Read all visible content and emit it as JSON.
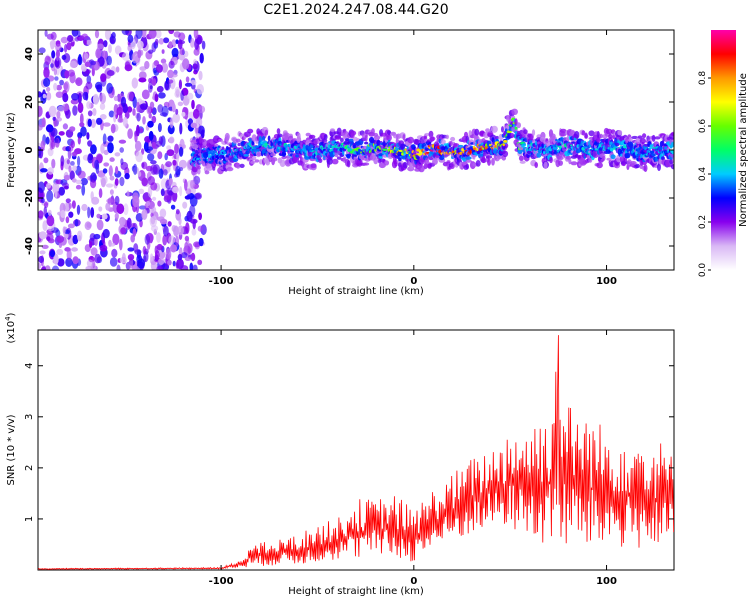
{
  "title": "C2E1.2024.247.08.44.G20",
  "chart_data": [
    {
      "type": "heatmap",
      "xlabel": "Height of straight line (km)",
      "ylabel": "Frequency (Hz)",
      "xlim": [
        -195,
        135
      ],
      "ylim": [
        -50,
        50
      ],
      "xticks": [
        -100,
        0,
        100
      ],
      "yticks": [
        -40,
        -20,
        0,
        20,
        40
      ],
      "colorbar": {
        "label": "Normalized spectral amplitude",
        "range": [
          0.0,
          1.0
        ],
        "ticks": [
          0.0,
          0.2,
          0.4,
          0.6,
          0.8
        ],
        "tick_labels": [
          "0.0",
          "0.2",
          "0.4",
          "0.6",
          "0.8"
        ],
        "colormap": [
          "#ffffff",
          "#d9b8f5",
          "#8800ee",
          "#0000ff",
          "#00ccff",
          "#00ff66",
          "#66ff00",
          "#ffff00",
          "#ff9900",
          "#ff0000",
          "#ff00aa"
        ]
      },
      "signal_ridge": {
        "x": [
          -115,
          -100,
          -90,
          -80,
          -70,
          -60,
          -50,
          -40,
          -30,
          -20,
          -10,
          0,
          5,
          10,
          20,
          30,
          40,
          45,
          52,
          55,
          60,
          70,
          80,
          90,
          100,
          110,
          120,
          130,
          135
        ],
        "freq": [
          -3,
          -2,
          0,
          2,
          1,
          0,
          -1,
          2,
          0,
          1,
          0,
          -2,
          -1,
          1,
          -1,
          0,
          2,
          1,
          12,
          2,
          1,
          0,
          2,
          0,
          1,
          0,
          -1,
          0,
          0
        ],
        "amplitude": [
          0.35,
          0.35,
          0.4,
          0.45,
          0.45,
          0.4,
          0.4,
          0.5,
          0.55,
          0.6,
          0.7,
          0.75,
          0.85,
          0.9,
          0.8,
          0.85,
          0.8,
          0.75,
          0.7,
          0.55,
          0.45,
          0.45,
          0.45,
          0.4,
          0.4,
          0.4,
          0.4,
          0.4,
          0.4
        ]
      },
      "noise_region": [
        -195,
        -113
      ]
    },
    {
      "type": "line",
      "xlabel": "Height of straight line (km)",
      "ylabel": "SNR (10 * v/v)",
      "yscale_label": "(x10",
      "yscale_exp": "4",
      "xlim": [
        -195,
        135
      ],
      "ylim": [
        0,
        4.7
      ],
      "xticks": [
        -100,
        0,
        100
      ],
      "yticks": [
        1,
        2,
        3,
        4
      ],
      "color": "#ff0000",
      "envelope": {
        "x": [
          -195,
          -100,
          -90,
          -85,
          -70,
          -60,
          -50,
          -40,
          -30,
          -20,
          -10,
          0,
          10,
          20,
          30,
          40,
          50,
          60,
          70,
          75,
          80,
          90,
          100,
          110,
          120,
          130,
          135
        ],
        "low": [
          0.01,
          0.02,
          0.05,
          0.05,
          0.1,
          0.1,
          0.15,
          0.2,
          0.2,
          0.3,
          0.2,
          0.15,
          0.4,
          0.5,
          0.7,
          0.8,
          0.8,
          0.6,
          0.4,
          0.3,
          0.4,
          0.4,
          0.4,
          0.4,
          0.4,
          0.4,
          0.5
        ],
        "high": [
          0.03,
          0.05,
          0.2,
          0.5,
          0.6,
          0.7,
          0.9,
          1.0,
          1.4,
          1.4,
          1.5,
          1.2,
          1.6,
          1.9,
          2.2,
          2.4,
          2.8,
          2.9,
          3.2,
          4.6,
          3.3,
          3.1,
          2.8,
          2.8,
          2.7,
          2.5,
          2.2
        ]
      }
    }
  ]
}
